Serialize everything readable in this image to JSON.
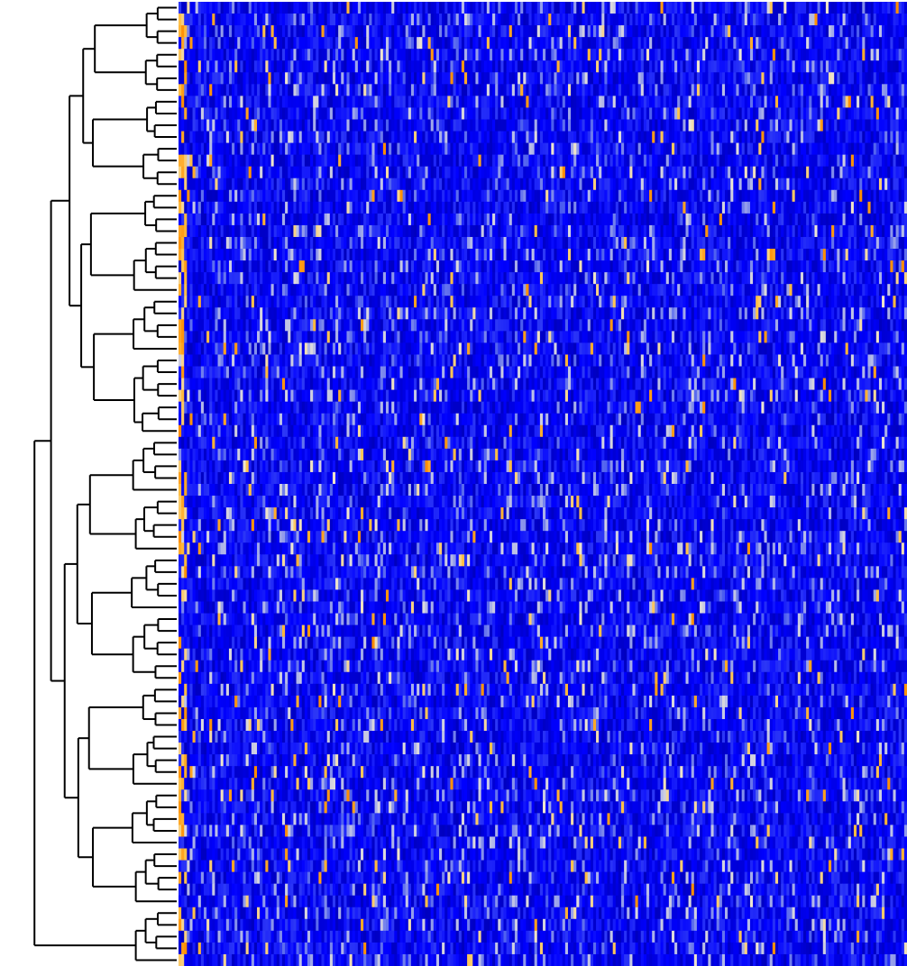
{
  "chart_data": {
    "type": "heatmap",
    "title": "",
    "xlabel": "",
    "ylabel": "",
    "n_rows": 82,
    "n_cols": 260,
    "value_range": [
      0,
      1
    ],
    "colormap": [
      {
        "stop": 0.0,
        "color": "#00008b"
      },
      {
        "stop": 0.35,
        "color": "#0000ff"
      },
      {
        "stop": 0.6,
        "color": "#4a5cf0"
      },
      {
        "stop": 0.75,
        "color": "#b8bde8"
      },
      {
        "stop": 0.82,
        "color": "#ece6d6"
      },
      {
        "stop": 0.9,
        "color": "#ffc24a"
      },
      {
        "stop": 0.97,
        "color": "#ff8c00"
      },
      {
        "stop": 1.0,
        "color": "#b22222"
      }
    ],
    "row_clusters": [
      {
        "start": 0,
        "end": 3
      },
      {
        "start": 4,
        "end": 7
      },
      {
        "start": 8,
        "end": 11
      },
      {
        "start": 12,
        "end": 15
      },
      {
        "start": 16,
        "end": 19
      },
      {
        "start": 20,
        "end": 24
      },
      {
        "start": 25,
        "end": 29
      },
      {
        "start": 30,
        "end": 36
      },
      {
        "start": 37,
        "end": 41
      },
      {
        "start": 42,
        "end": 46
      },
      {
        "start": 47,
        "end": 51
      },
      {
        "start": 52,
        "end": 57
      },
      {
        "start": 58,
        "end": 61
      },
      {
        "start": 62,
        "end": 66
      },
      {
        "start": 67,
        "end": 71
      },
      {
        "start": 72,
        "end": 76
      },
      {
        "start": 77,
        "end": 81
      }
    ],
    "dendrogram_merges": [
      {
        "id": "a",
        "children": [
          0,
          1
        ],
        "height": 0.1
      },
      {
        "id": "b",
        "children": [
          2,
          3
        ],
        "height": 0.12
      },
      {
        "id": "c",
        "children": [
          "a",
          "b"
        ],
        "height": 0.22
      },
      {
        "id": "d",
        "children": [
          4,
          5
        ],
        "height": 0.14
      },
      {
        "id": "e",
        "children": [
          6,
          7
        ],
        "height": 0.11
      },
      {
        "id": "f",
        "children": [
          "d",
          "e"
        ],
        "height": 0.24
      },
      {
        "id": "g",
        "children": [
          "c",
          "f"
        ],
        "height": 0.36
      },
      {
        "id": "h",
        "children": [
          8,
          9
        ],
        "height": 0.15
      },
      {
        "id": "i",
        "children": [
          10,
          11
        ],
        "height": 0.13
      },
      {
        "id": "j",
        "children": [
          "h",
          "i"
        ],
        "height": 0.28
      },
      {
        "id": "k",
        "children": [
          12,
          13
        ],
        "height": 0.16
      },
      {
        "id": "l",
        "children": [
          14,
          15
        ],
        "height": 0.12
      },
      {
        "id": "m",
        "children": [
          "k",
          "l"
        ],
        "height": 0.27
      },
      {
        "id": "n",
        "children": [
          "j",
          "m"
        ],
        "height": 0.41
      },
      {
        "id": "o",
        "children": [
          "g",
          "n"
        ],
        "height": 0.55
      },
      {
        "id": "p",
        "children": [
          16,
          "o"
        ],
        "height": 0.72
      },
      {
        "id": "q",
        "children": [
          17,
          "p"
        ],
        "height": 0.96
      }
    ]
  }
}
